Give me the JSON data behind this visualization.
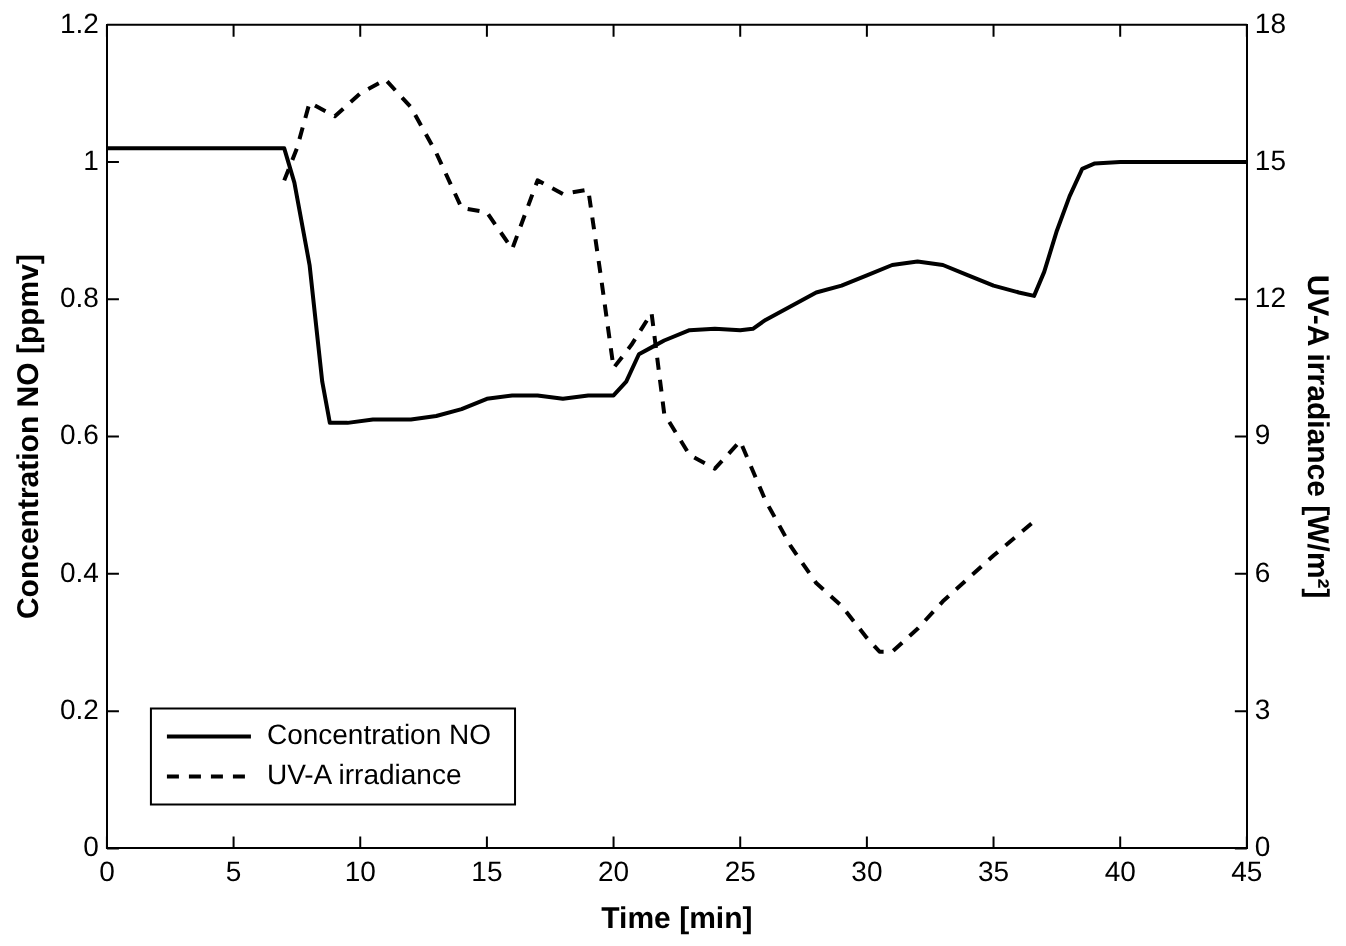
{
  "chart_data": {
    "type": "line",
    "xlabel": "Time [min]",
    "ylabel": "Concentration NO [ppmv]",
    "y2label": "UV-A irradiance [W/m²]",
    "xlim": [
      0,
      45
    ],
    "xticks": [
      0,
      5,
      10,
      15,
      20,
      25,
      30,
      35,
      40,
      45
    ],
    "ylim": [
      0,
      1.2
    ],
    "yticks": [
      0,
      0.2,
      0.4,
      0.6,
      0.8,
      1,
      1.2
    ],
    "y2lim": [
      0,
      18
    ],
    "y2ticks": [
      0,
      3,
      6,
      9,
      12,
      15,
      18
    ],
    "legend": "bottom left",
    "grid": false,
    "marker": "none",
    "series": [
      {
        "name": "Concentration NO",
        "color": "#000000",
        "line_style": "solid",
        "x": [
          0,
          7,
          7.4,
          8,
          8.5,
          8.8,
          9.5,
          10.5,
          12,
          13,
          14,
          15,
          16,
          17,
          18,
          19,
          20,
          20.5,
          21,
          21.5,
          22,
          23,
          24,
          25,
          25.5,
          26,
          27,
          28,
          29,
          30,
          31,
          32,
          33,
          34,
          35,
          36,
          36.6,
          37,
          37.5,
          38,
          38.5,
          39,
          40,
          45
        ],
        "values": [
          1.02,
          1.02,
          0.97,
          0.85,
          0.68,
          0.62,
          0.62,
          0.625,
          0.625,
          0.63,
          0.64,
          0.655,
          0.66,
          0.66,
          0.655,
          0.66,
          0.66,
          0.68,
          0.72,
          0.73,
          0.74,
          0.755,
          0.757,
          0.755,
          0.757,
          0.77,
          0.79,
          0.81,
          0.82,
          0.835,
          0.85,
          0.855,
          0.85,
          0.835,
          0.82,
          0.81,
          0.805,
          0.84,
          0.9,
          0.95,
          0.99,
          0.998,
          1,
          1
        ]
      },
      {
        "name": "UV-A irradiance",
        "color": "#000000",
        "line_style": "dashed",
        "axis": "y2",
        "x": [
          7,
          7.5,
          8,
          9,
          10,
          11,
          12,
          13,
          14,
          15,
          16,
          17,
          18,
          19,
          19.5,
          20,
          20.7,
          21.5,
          22,
          23,
          24,
          25,
          26,
          27,
          28,
          29,
          30,
          30.5,
          31,
          32,
          33,
          34,
          35,
          36.5
        ],
        "values": [
          14.6,
          15.3,
          16.3,
          16,
          16.5,
          16.8,
          16.2,
          15.2,
          14,
          13.9,
          13.1,
          14.6,
          14.3,
          14.4,
          12.5,
          10.5,
          11,
          11.7,
          9.5,
          8.6,
          8.3,
          8.9,
          7.6,
          6.6,
          5.8,
          5.3,
          4.6,
          4.3,
          4.3,
          4.8,
          5.4,
          5.9,
          6.4,
          7.1
        ]
      }
    ]
  }
}
